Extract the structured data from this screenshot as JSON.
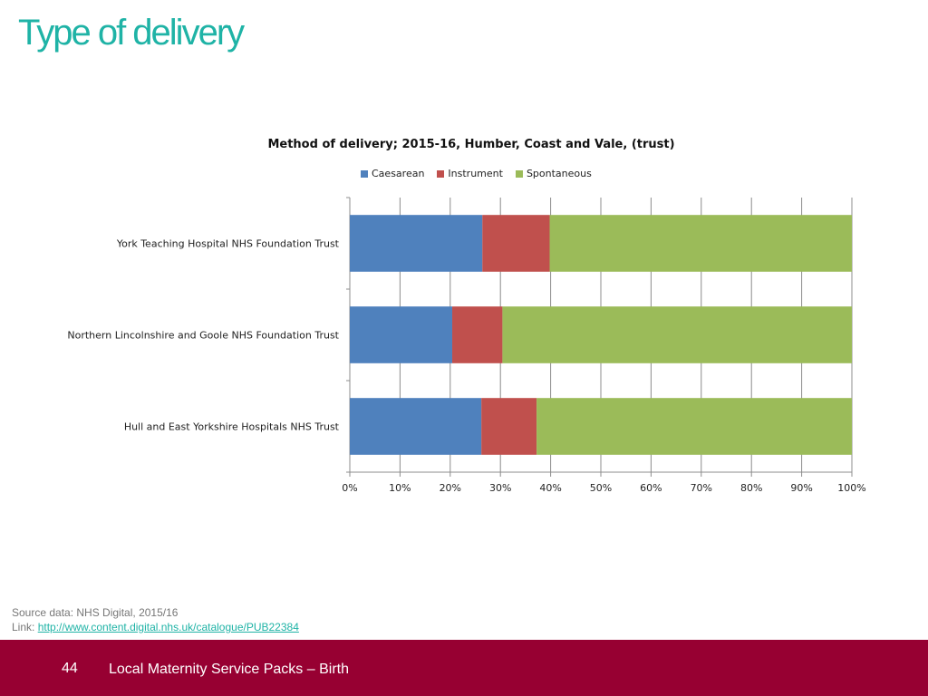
{
  "page": {
    "title": "Type of delivery",
    "source_line": "Source data: NHS Digital, 2015/16",
    "link_label": "Link: ",
    "link_url": "http://www.content.digital.nhs.uk/catalogue/PUB22384",
    "page_number": "44",
    "footer_text": "Local Maternity Service Packs – Birth",
    "footer_color": "#970032",
    "title_color": "#1fb3a6"
  },
  "chart_data": {
    "type": "bar",
    "orientation": "horizontal",
    "stacked": "percent",
    "title": "Method of delivery; 2015-16, Humber, Coast and Vale, (trust)",
    "categories": [
      "York Teaching Hospital NHS Foundation Trust",
      "Northern Lincolnshire and Goole NHS Foundation Trust",
      "Hull and East Yorkshire Hospitals NHS Trust"
    ],
    "series": [
      {
        "name": "Caesarean",
        "color": "#4f81bd",
        "values": [
          26.4,
          20.4,
          26.2
        ]
      },
      {
        "name": "Instrument",
        "color": "#c0504d",
        "values": [
          13.4,
          10.0,
          11.0
        ]
      },
      {
        "name": "Spontaneous",
        "color": "#9bbb59",
        "values": [
          60.2,
          69.6,
          62.8
        ]
      }
    ],
    "xlim": [
      0,
      100
    ],
    "x_ticks": [
      "0%",
      "10%",
      "20%",
      "30%",
      "40%",
      "50%",
      "60%",
      "70%",
      "80%",
      "90%",
      "100%"
    ],
    "grid": true,
    "legend_position": "top"
  }
}
